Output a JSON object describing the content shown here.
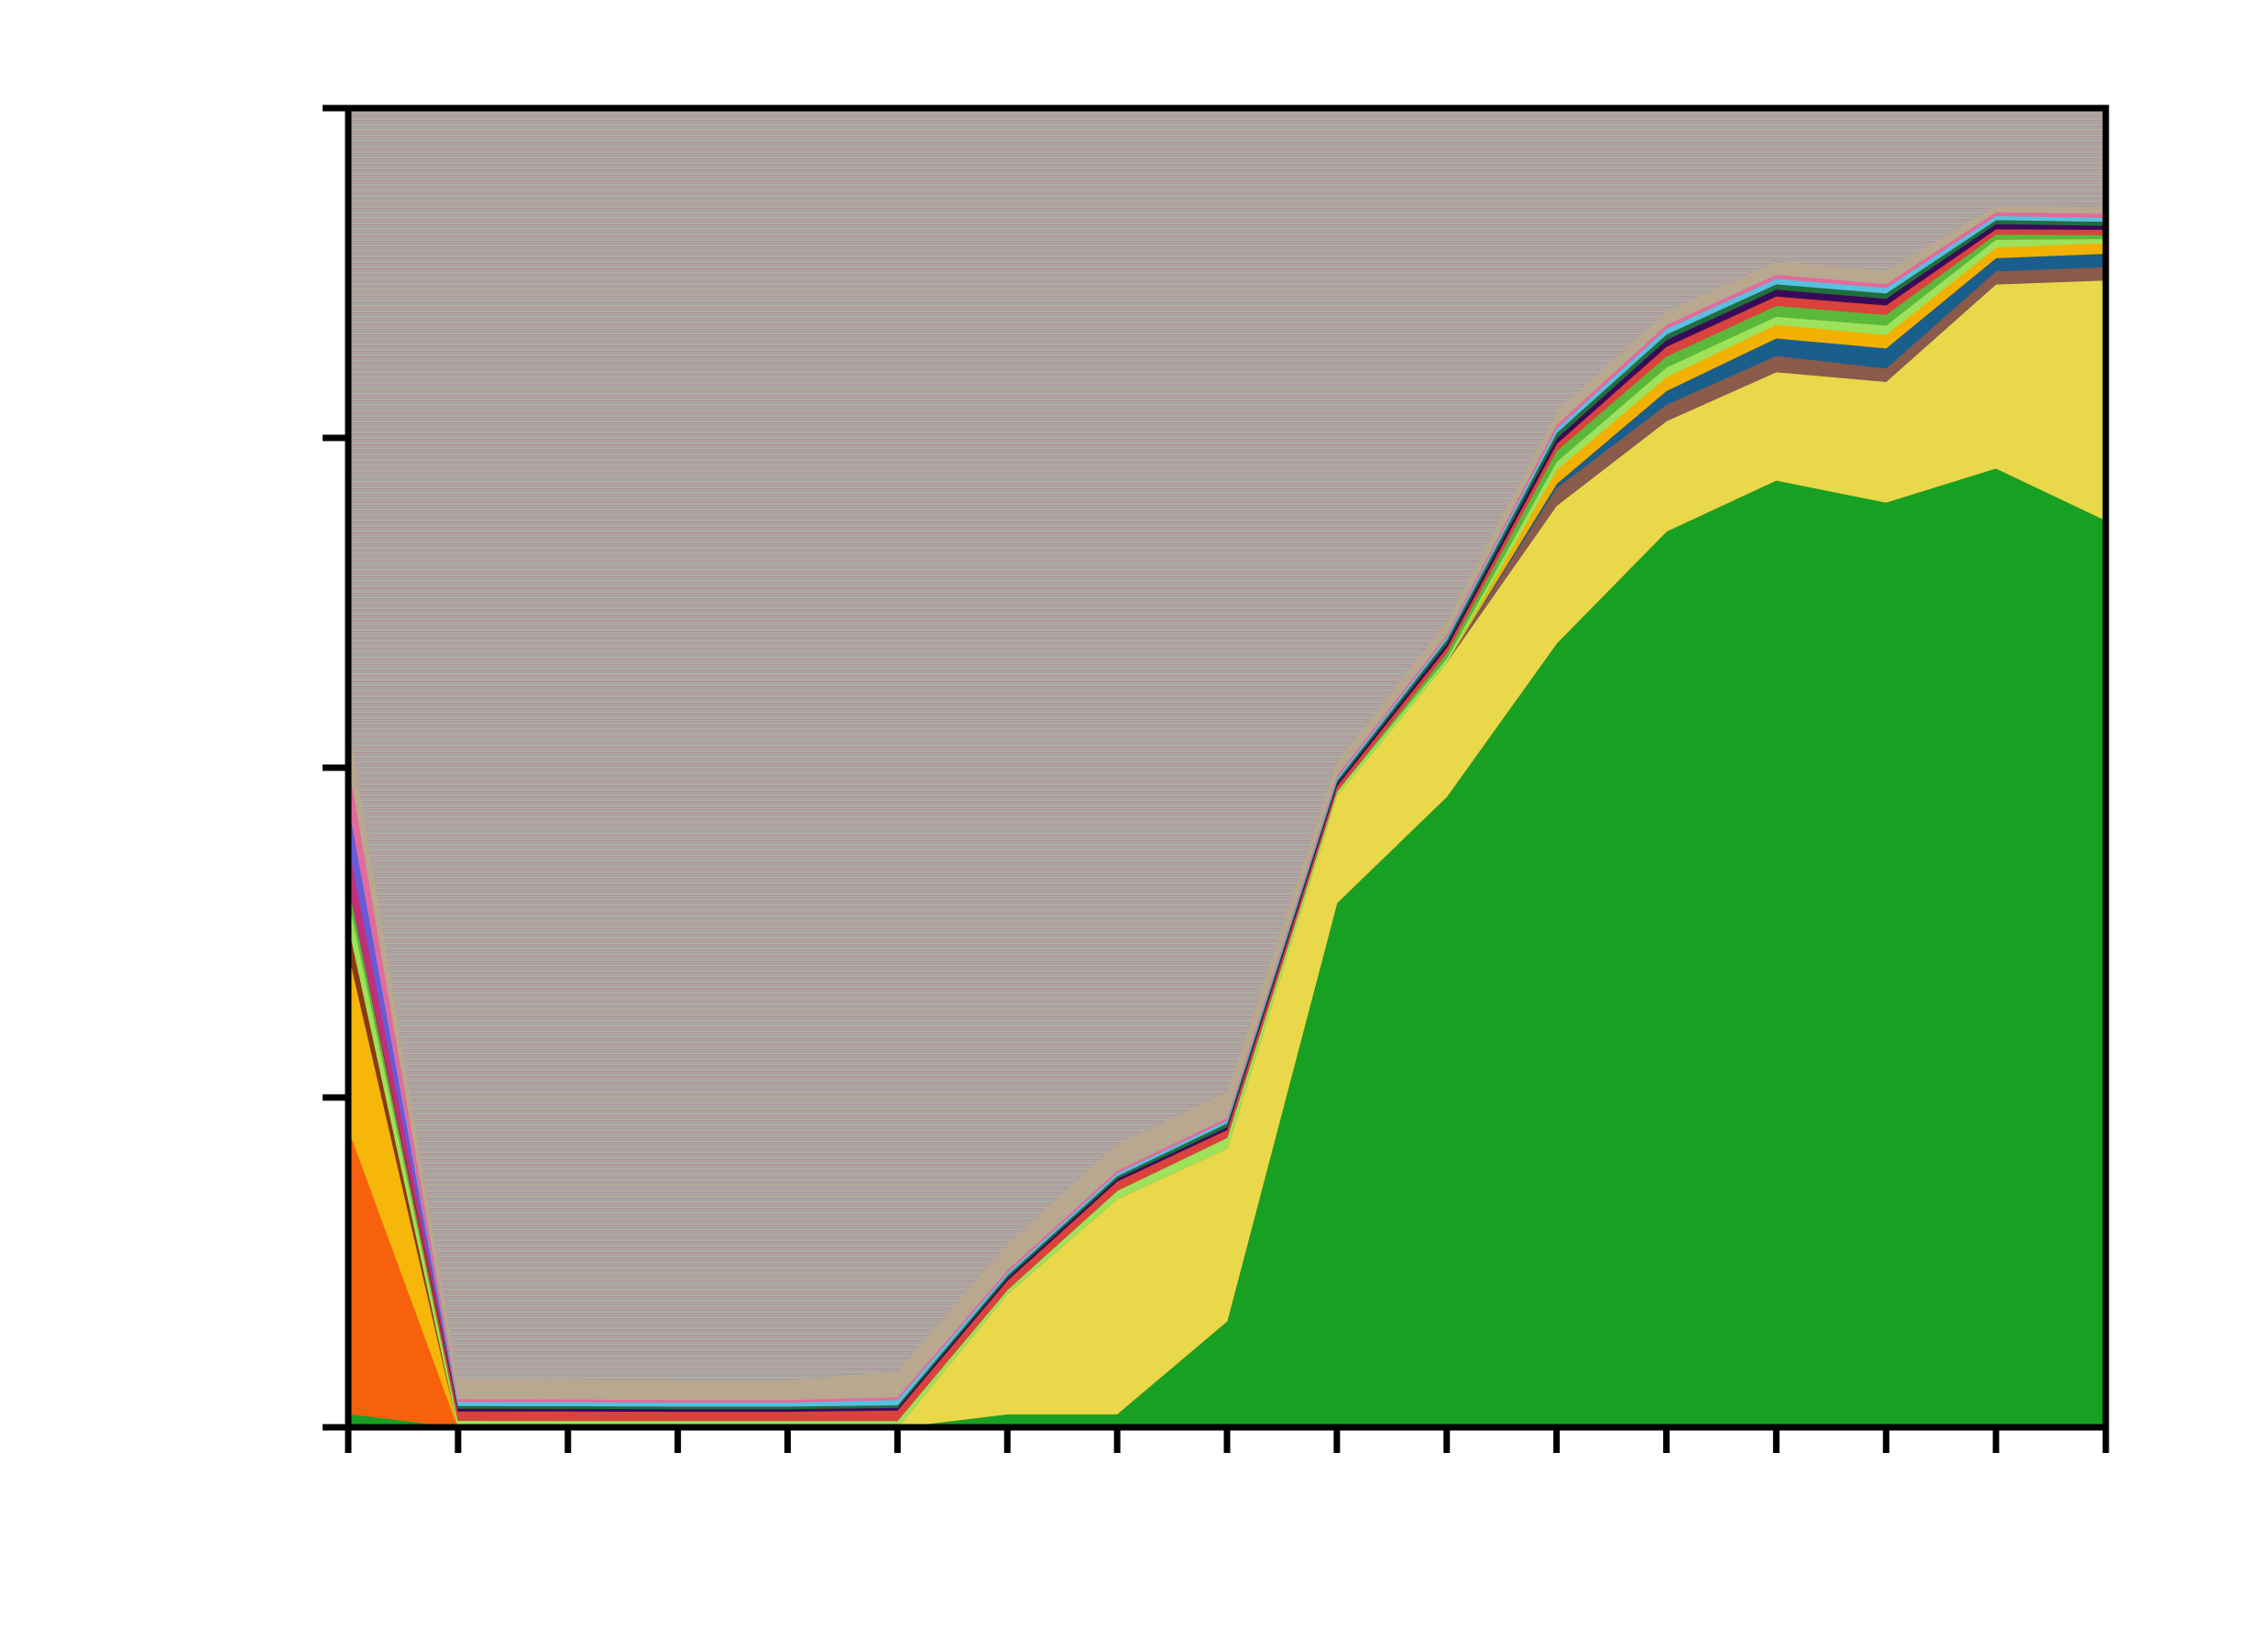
{
  "chart_data": {
    "type": "area",
    "title": "",
    "xlabel": "",
    "ylabel": "",
    "x": [
      0,
      1,
      2,
      3,
      4,
      5,
      6,
      7,
      8,
      9,
      10,
      11,
      12,
      13,
      14,
      15,
      16
    ],
    "xlim": [
      0,
      16
    ],
    "ylim": [
      0,
      1
    ],
    "yticks": [
      0,
      0.25,
      0.5,
      0.75,
      1
    ],
    "grid": false,
    "legend": "none",
    "series": [
      {
        "color": "#18a023",
        "values": [
          0.01,
          0.0,
          0.0,
          0.0,
          0.0,
          0.0,
          0.01,
          0.01,
          0.08,
          0.39,
          0.47,
          0.57,
          0.65,
          0.7,
          0.69,
          0.73,
          0.68
        ]
      },
      {
        "color": "#f7610c",
        "values": [
          0.21,
          0.0,
          0.0,
          0.0,
          0.0,
          0.0,
          0.0,
          0.0,
          0.0,
          0.0,
          0.0,
          0.0,
          0.0,
          0.0,
          0.0,
          0.0,
          0.0
        ]
      },
      {
        "color": "#f6b60a",
        "values": [
          0.13,
          0.0,
          0.0,
          0.0,
          0.0,
          0.0,
          0.0,
          0.0,
          0.0,
          0.0,
          0.0,
          0.0,
          0.0,
          0.0,
          0.0,
          0.0,
          0.0
        ]
      },
      {
        "color": "#e8d84a",
        "values": [
          0.0,
          0.0,
          0.0,
          0.0,
          0.0,
          0.0,
          0.09,
          0.16,
          0.13,
          0.08,
          0.1,
          0.1,
          0.08,
          0.08,
          0.09,
          0.14,
          0.18
        ]
      },
      {
        "color": "#8a5a4a",
        "values": [
          0.0,
          0.0,
          0.0,
          0.0,
          0.0,
          0.0,
          0.0,
          0.0,
          0.0,
          0.0,
          0.0,
          0.013,
          0.012,
          0.012,
          0.01,
          0.01,
          0.01
        ]
      },
      {
        "color": "#1a5e8c",
        "values": [
          0.0,
          0.0,
          0.0,
          0.0,
          0.0,
          0.0,
          0.0,
          0.0,
          0.0,
          0.0,
          0.0,
          0.003,
          0.01,
          0.013,
          0.015,
          0.01,
          0.01
        ]
      },
      {
        "color": "#8b3a0f",
        "values": [
          0.02,
          0.0,
          0.0,
          0.0,
          0.0,
          0.0,
          0.0,
          0.0,
          0.0,
          0.0,
          0.0,
          0.0,
          0.0,
          0.0,
          0.0,
          0.0,
          0.0
        ]
      },
      {
        "color": "#f2b100",
        "values": [
          0.0,
          0.0,
          0.0,
          0.0,
          0.0,
          0.0,
          0.0,
          0.0,
          0.0,
          0.0,
          0.0,
          0.01,
          0.01,
          0.01,
          0.01,
          0.008,
          0.008
        ]
      },
      {
        "color": "#9de25a",
        "values": [
          0.02,
          0.005,
          0.005,
          0.005,
          0.005,
          0.005,
          0.003,
          0.006,
          0.008,
          0.003,
          0.003,
          0.006,
          0.007,
          0.006,
          0.007,
          0.006,
          0.003
        ]
      },
      {
        "color": "#5cb83a",
        "values": [
          0.01,
          0.0,
          0.0,
          0.0,
          0.0,
          0.0,
          0.0,
          0.0,
          0.0,
          0.0,
          0.004,
          0.008,
          0.008,
          0.008,
          0.008,
          0.004,
          0.003
        ]
      },
      {
        "color": "#d9433b",
        "values": [
          0.0,
          0.007,
          0.007,
          0.007,
          0.007,
          0.008,
          0.007,
          0.007,
          0.006,
          0.004,
          0.004,
          0.005,
          0.007,
          0.007,
          0.007,
          0.004,
          0.004
        ]
      },
      {
        "color": "#3a0a5a",
        "values": [
          0.0,
          0.002,
          0.002,
          0.002,
          0.002,
          0.002,
          0.002,
          0.002,
          0.002,
          0.002,
          0.003,
          0.004,
          0.005,
          0.005,
          0.005,
          0.004,
          0.003
        ]
      },
      {
        "color": "#1f6f3a",
        "values": [
          0.0,
          0.002,
          0.002,
          0.002,
          0.002,
          0.002,
          0.002,
          0.002,
          0.003,
          0.002,
          0.003,
          0.004,
          0.004,
          0.004,
          0.004,
          0.003,
          0.003
        ]
      },
      {
        "color": "#c03078",
        "values": [
          0.03,
          0.0,
          0.0,
          0.0,
          0.0,
          0.0,
          0.0,
          0.0,
          0.0,
          0.0,
          0.0,
          0.0,
          0.0,
          0.0,
          0.0,
          0.0,
          0.0
        ]
      },
      {
        "color": "#6a5ad8",
        "values": [
          0.03,
          0.0,
          0.0,
          0.0,
          0.0,
          0.0,
          0.0,
          0.0,
          0.0,
          0.0,
          0.0,
          0.0,
          0.0,
          0.0,
          0.0,
          0.0,
          0.0
        ]
      },
      {
        "color": "#56c1e0",
        "values": [
          0.0,
          0.003,
          0.003,
          0.003,
          0.003,
          0.004,
          0.002,
          0.002,
          0.002,
          0.002,
          0.002,
          0.003,
          0.004,
          0.004,
          0.004,
          0.003,
          0.003
        ]
      },
      {
        "color": "#e36a9a",
        "values": [
          0.03,
          0.002,
          0.002,
          0.002,
          0.002,
          0.002,
          0.002,
          0.002,
          0.002,
          0.002,
          0.002,
          0.003,
          0.003,
          0.003,
          0.003,
          0.003,
          0.003
        ]
      },
      {
        "color": "#b8a890",
        "values": [
          0.03,
          0.015,
          0.015,
          0.015,
          0.015,
          0.02,
          0.02,
          0.02,
          0.02,
          0.01,
          0.01,
          0.01,
          0.01,
          0.01,
          0.01,
          0.005,
          0.005
        ]
      },
      {
        "color": "#a89e9b",
        "values": [
          0.45,
          0.94,
          0.946,
          0.966,
          0.966,
          0.959,
          0.85,
          0.77,
          0.74,
          0.486,
          0.382,
          0.22,
          0.147,
          0.113,
          0.121,
          0.074,
          0.074
        ]
      }
    ]
  }
}
